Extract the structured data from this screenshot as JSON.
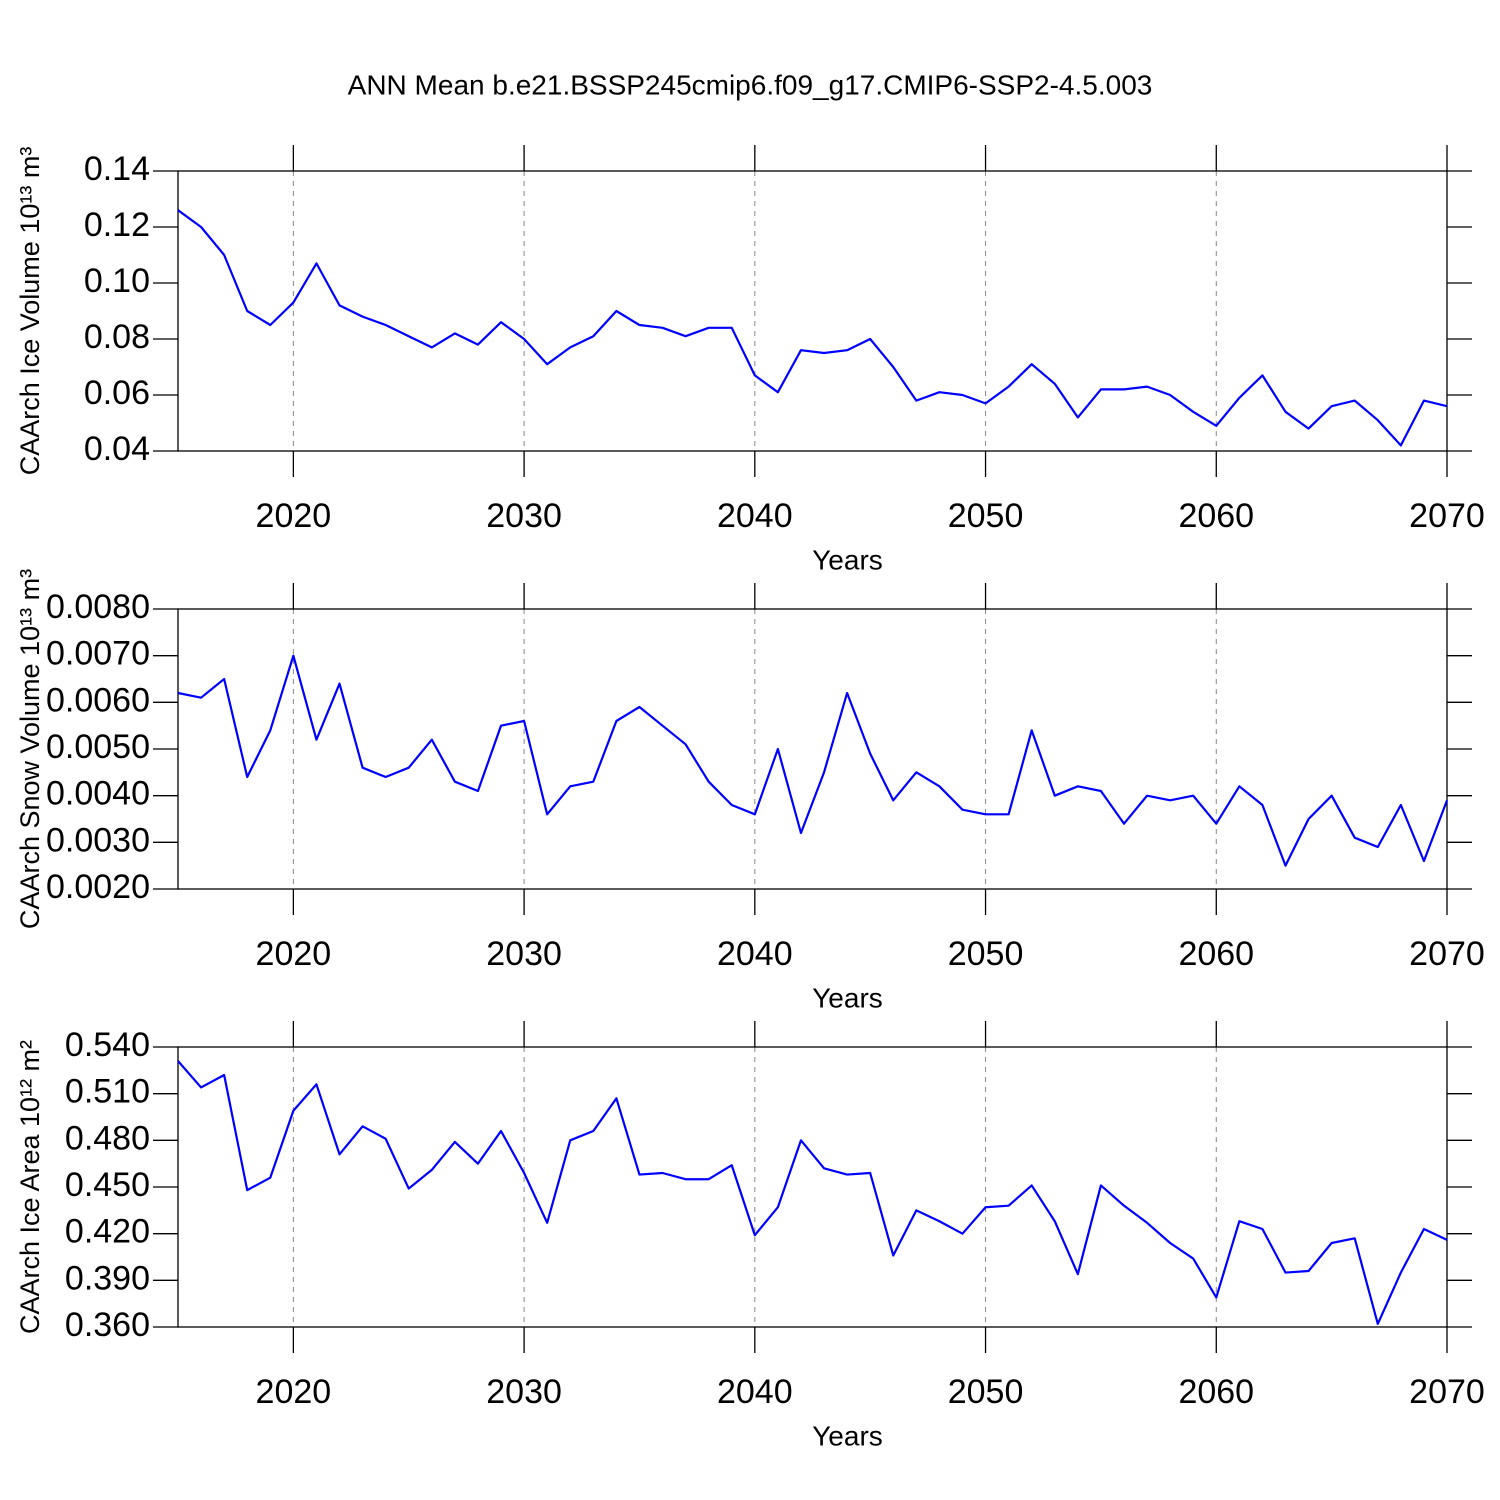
{
  "title": "ANN Mean b.e21.BSSP245cmip6.f09_g17.CMIP6-SSP2-4.5.003",
  "chart_data": [
    {
      "type": "line",
      "ylabel": "CAArch Ice Volume 10¹³ m³",
      "xlabel": "Years",
      "color": "#0000ff",
      "grid": "x",
      "x": [
        2015,
        2016,
        2017,
        2018,
        2019,
        2020,
        2021,
        2022,
        2023,
        2024,
        2025,
        2026,
        2027,
        2028,
        2029,
        2030,
        2031,
        2032,
        2033,
        2034,
        2035,
        2036,
        2037,
        2038,
        2039,
        2040,
        2041,
        2042,
        2043,
        2044,
        2045,
        2046,
        2047,
        2048,
        2049,
        2050,
        2051,
        2052,
        2053,
        2054,
        2055,
        2056,
        2057,
        2058,
        2059,
        2060,
        2061,
        2062,
        2063,
        2064,
        2065,
        2066,
        2067,
        2068,
        2069,
        2070
      ],
      "values": [
        0.126,
        0.12,
        0.11,
        0.09,
        0.085,
        0.093,
        0.107,
        0.092,
        0.088,
        0.085,
        0.081,
        0.077,
        0.082,
        0.078,
        0.086,
        0.08,
        0.071,
        0.077,
        0.081,
        0.09,
        0.085,
        0.084,
        0.081,
        0.084,
        0.084,
        0.067,
        0.061,
        0.076,
        0.075,
        0.076,
        0.08,
        0.07,
        0.058,
        0.061,
        0.06,
        0.057,
        0.063,
        0.071,
        0.064,
        0.052,
        0.062,
        0.062,
        0.063,
        0.06,
        0.054,
        0.049,
        0.059,
        0.067,
        0.054,
        0.048,
        0.056,
        0.058,
        0.051,
        0.042,
        0.058,
        0.056
      ],
      "xlim": [
        2015,
        2070
      ],
      "xticks": [
        2020,
        2030,
        2040,
        2050,
        2060,
        2070
      ],
      "ylim": [
        0.04,
        0.14
      ],
      "yticks": [
        0.04,
        0.06,
        0.08,
        {
          "value": 0.1,
          "label": "0.10"
        },
        0.12,
        0.14
      ]
    },
    {
      "type": "line",
      "ylabel": "CAArch Snow Volume 10¹³ m³",
      "xlabel": "Years",
      "color": "#0000ff",
      "grid": "x",
      "x": [
        2015,
        2016,
        2017,
        2018,
        2019,
        2020,
        2021,
        2022,
        2023,
        2024,
        2025,
        2026,
        2027,
        2028,
        2029,
        2030,
        2031,
        2032,
        2033,
        2034,
        2035,
        2036,
        2037,
        2038,
        2039,
        2040,
        2041,
        2042,
        2043,
        2044,
        2045,
        2046,
        2047,
        2048,
        2049,
        2050,
        2051,
        2052,
        2053,
        2054,
        2055,
        2056,
        2057,
        2058,
        2059,
        2060,
        2061,
        2062,
        2063,
        2064,
        2065,
        2066,
        2067,
        2068,
        2069,
        2070
      ],
      "values": [
        0.0062,
        0.0061,
        0.0065,
        0.0044,
        0.0054,
        0.007,
        0.0052,
        0.0064,
        0.0046,
        0.0044,
        0.0046,
        0.0052,
        0.0043,
        0.0041,
        0.0055,
        0.0056,
        0.0036,
        0.0042,
        0.0043,
        0.0056,
        0.0059,
        0.0055,
        0.0051,
        0.0043,
        0.0038,
        0.0036,
        0.005,
        0.0032,
        0.0045,
        0.0062,
        0.0049,
        0.0039,
        0.0045,
        0.0042,
        0.0037,
        0.0036,
        0.0036,
        0.0054,
        0.004,
        0.0042,
        0.0041,
        0.0034,
        0.004,
        0.0039,
        0.004,
        0.0034,
        0.0042,
        0.0038,
        0.0025,
        0.0035,
        0.004,
        0.0031,
        0.0029,
        0.0038,
        0.0026,
        0.0039
      ],
      "xlim": [
        2015,
        2070
      ],
      "xticks": [
        2020,
        2030,
        2040,
        2050,
        2060,
        2070
      ],
      "ylim": [
        0.002,
        0.008
      ],
      "yticks": [
        {
          "value": 0.002,
          "label": "0.0020"
        },
        {
          "value": 0.003,
          "label": "0.0030"
        },
        {
          "value": 0.004,
          "label": "0.0040"
        },
        {
          "value": 0.005,
          "label": "0.0050"
        },
        {
          "value": 0.006,
          "label": "0.0060"
        },
        {
          "value": 0.007,
          "label": "0.0070"
        },
        {
          "value": 0.008,
          "label": "0.0080"
        }
      ]
    },
    {
      "type": "line",
      "ylabel": "CAArch Ice Area 10¹² m²",
      "xlabel": "Years",
      "color": "#0000ff",
      "grid": "x",
      "x": [
        2015,
        2016,
        2017,
        2018,
        2019,
        2020,
        2021,
        2022,
        2023,
        2024,
        2025,
        2026,
        2027,
        2028,
        2029,
        2030,
        2031,
        2032,
        2033,
        2034,
        2035,
        2036,
        2037,
        2038,
        2039,
        2040,
        2041,
        2042,
        2043,
        2044,
        2045,
        2046,
        2047,
        2048,
        2049,
        2050,
        2051,
        2052,
        2053,
        2054,
        2055,
        2056,
        2057,
        2058,
        2059,
        2060,
        2061,
        2062,
        2063,
        2064,
        2065,
        2066,
        2067,
        2068,
        2069,
        2070
      ],
      "values": [
        0.531,
        0.514,
        0.522,
        0.448,
        0.456,
        0.499,
        0.516,
        0.471,
        0.489,
        0.481,
        0.449,
        0.461,
        0.479,
        0.465,
        0.486,
        0.459,
        0.427,
        0.48,
        0.486,
        0.507,
        0.458,
        0.459,
        0.455,
        0.455,
        0.464,
        0.419,
        0.437,
        0.48,
        0.462,
        0.458,
        0.459,
        0.406,
        0.435,
        0.428,
        0.42,
        0.437,
        0.438,
        0.451,
        0.428,
        0.394,
        0.451,
        0.438,
        0.427,
        0.414,
        0.404,
        0.379,
        0.428,
        0.423,
        0.395,
        0.396,
        0.414,
        0.417,
        0.362,
        0.395,
        0.423,
        0.416
      ],
      "xlim": [
        2015,
        2070
      ],
      "xticks": [
        2020,
        2030,
        2040,
        2050,
        2060,
        2070
      ],
      "ylim": [
        0.36,
        0.54
      ],
      "yticks": [
        {
          "value": 0.36,
          "label": "0.360"
        },
        {
          "value": 0.39,
          "label": "0.390"
        },
        {
          "value": 0.42,
          "label": "0.420"
        },
        {
          "value": 0.45,
          "label": "0.450"
        },
        {
          "value": 0.48,
          "label": "0.480"
        },
        {
          "value": 0.51,
          "label": "0.510"
        },
        {
          "value": 0.54,
          "label": "0.540"
        }
      ]
    }
  ]
}
